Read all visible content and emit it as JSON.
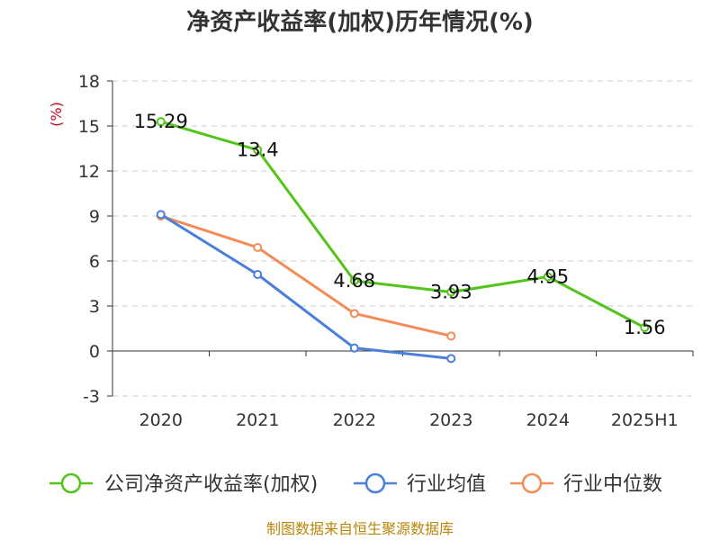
{
  "chart_data": {
    "type": "line",
    "title": "净资产收益率(加权)历年情况(%)",
    "ylabel": "(%)",
    "ylim": [
      -3,
      18
    ],
    "yticks": [
      18,
      15,
      12,
      9,
      6,
      3,
      0,
      -3
    ],
    "categories": [
      "2020",
      "2021",
      "2022",
      "2023",
      "2024",
      "2025H1"
    ],
    "series": [
      {
        "name": "公司净资产收益率(加权)",
        "color": "#52c41a",
        "values": [
          15.29,
          13.4,
          4.68,
          3.93,
          4.95,
          1.56
        ],
        "labels": [
          "15.29",
          "13.4",
          "4.68",
          "3.93",
          "4.95",
          "1.56"
        ]
      },
      {
        "name": "行业均值",
        "color": "#4a7fdc",
        "values": [
          9.1,
          5.1,
          0.2,
          -0.5,
          null,
          null
        ]
      },
      {
        "name": "行业中位数",
        "color": "#f58b57",
        "values": [
          9.0,
          6.9,
          2.5,
          1.0,
          null,
          null
        ]
      }
    ],
    "grid": true,
    "legend": "bottom"
  },
  "source": "制图数据来自恒生聚源数据库"
}
